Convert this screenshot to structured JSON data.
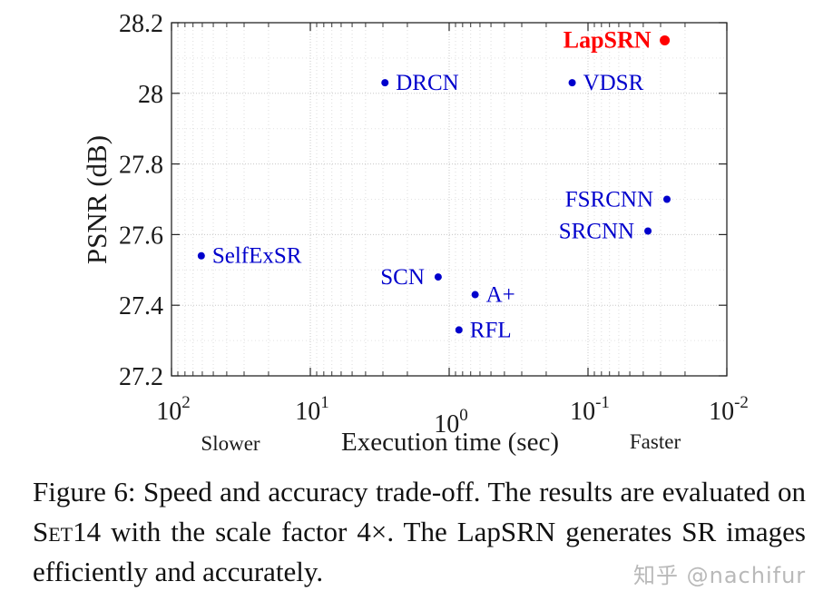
{
  "chart_data": {
    "type": "scatter",
    "xlabel": "Execution time (sec)",
    "ylabel": "PSNR (dB)",
    "x_scale": "log",
    "x_reversed": true,
    "xlim": [
      100,
      0.01
    ],
    "ylim": [
      27.2,
      28.2
    ],
    "x_tick_labels": [
      {
        "base": "10",
        "exp": "2",
        "value": 100
      },
      {
        "base": "10",
        "exp": "1",
        "value": 10
      },
      {
        "base": "10",
        "exp": "0",
        "value": 1
      },
      {
        "base": "10",
        "exp": "-1",
        "value": 0.1
      },
      {
        "base": "10",
        "exp": "-2",
        "value": 0.01
      }
    ],
    "y_ticks": [
      "27.2",
      "27.4",
      "27.6",
      "27.8",
      "28",
      "28.2"
    ],
    "x_annotations": {
      "left": "Slower",
      "right": "Faster"
    },
    "grid": "major and minor, dotted",
    "marker_color": "#0000cc",
    "highlight_color": "#ff0000",
    "points": [
      {
        "name": "LapSRN",
        "x": 0.028,
        "y": 28.15,
        "highlight": true,
        "label_side": "left"
      },
      {
        "name": "VDSR",
        "x": 0.13,
        "y": 28.03,
        "highlight": false,
        "label_side": "right"
      },
      {
        "name": "DRCN",
        "x": 2.9,
        "y": 28.03,
        "highlight": false,
        "label_side": "right"
      },
      {
        "name": "FSRCNN",
        "x": 0.027,
        "y": 27.7,
        "highlight": false,
        "label_side": "left"
      },
      {
        "name": "SRCNN",
        "x": 0.037,
        "y": 27.61,
        "highlight": false,
        "label_side": "left"
      },
      {
        "name": "SelfExSR",
        "x": 61,
        "y": 27.54,
        "highlight": false,
        "label_side": "right"
      },
      {
        "name": "SCN",
        "x": 1.2,
        "y": 27.48,
        "highlight": false,
        "label_side": "left"
      },
      {
        "name": "A+",
        "x": 0.65,
        "y": 27.43,
        "highlight": false,
        "label_side": "right"
      },
      {
        "name": "RFL",
        "x": 0.85,
        "y": 27.33,
        "highlight": false,
        "label_side": "right"
      }
    ]
  },
  "caption": {
    "text_before": "Figure 6:  Speed and accuracy trade-off.  The results are evaluated on ",
    "dataset": "Set14",
    "text_after": " with the scale factor 4×. The LapSRN generates SR images efficiently and accurately."
  },
  "watermark": "知乎 @nachifur"
}
